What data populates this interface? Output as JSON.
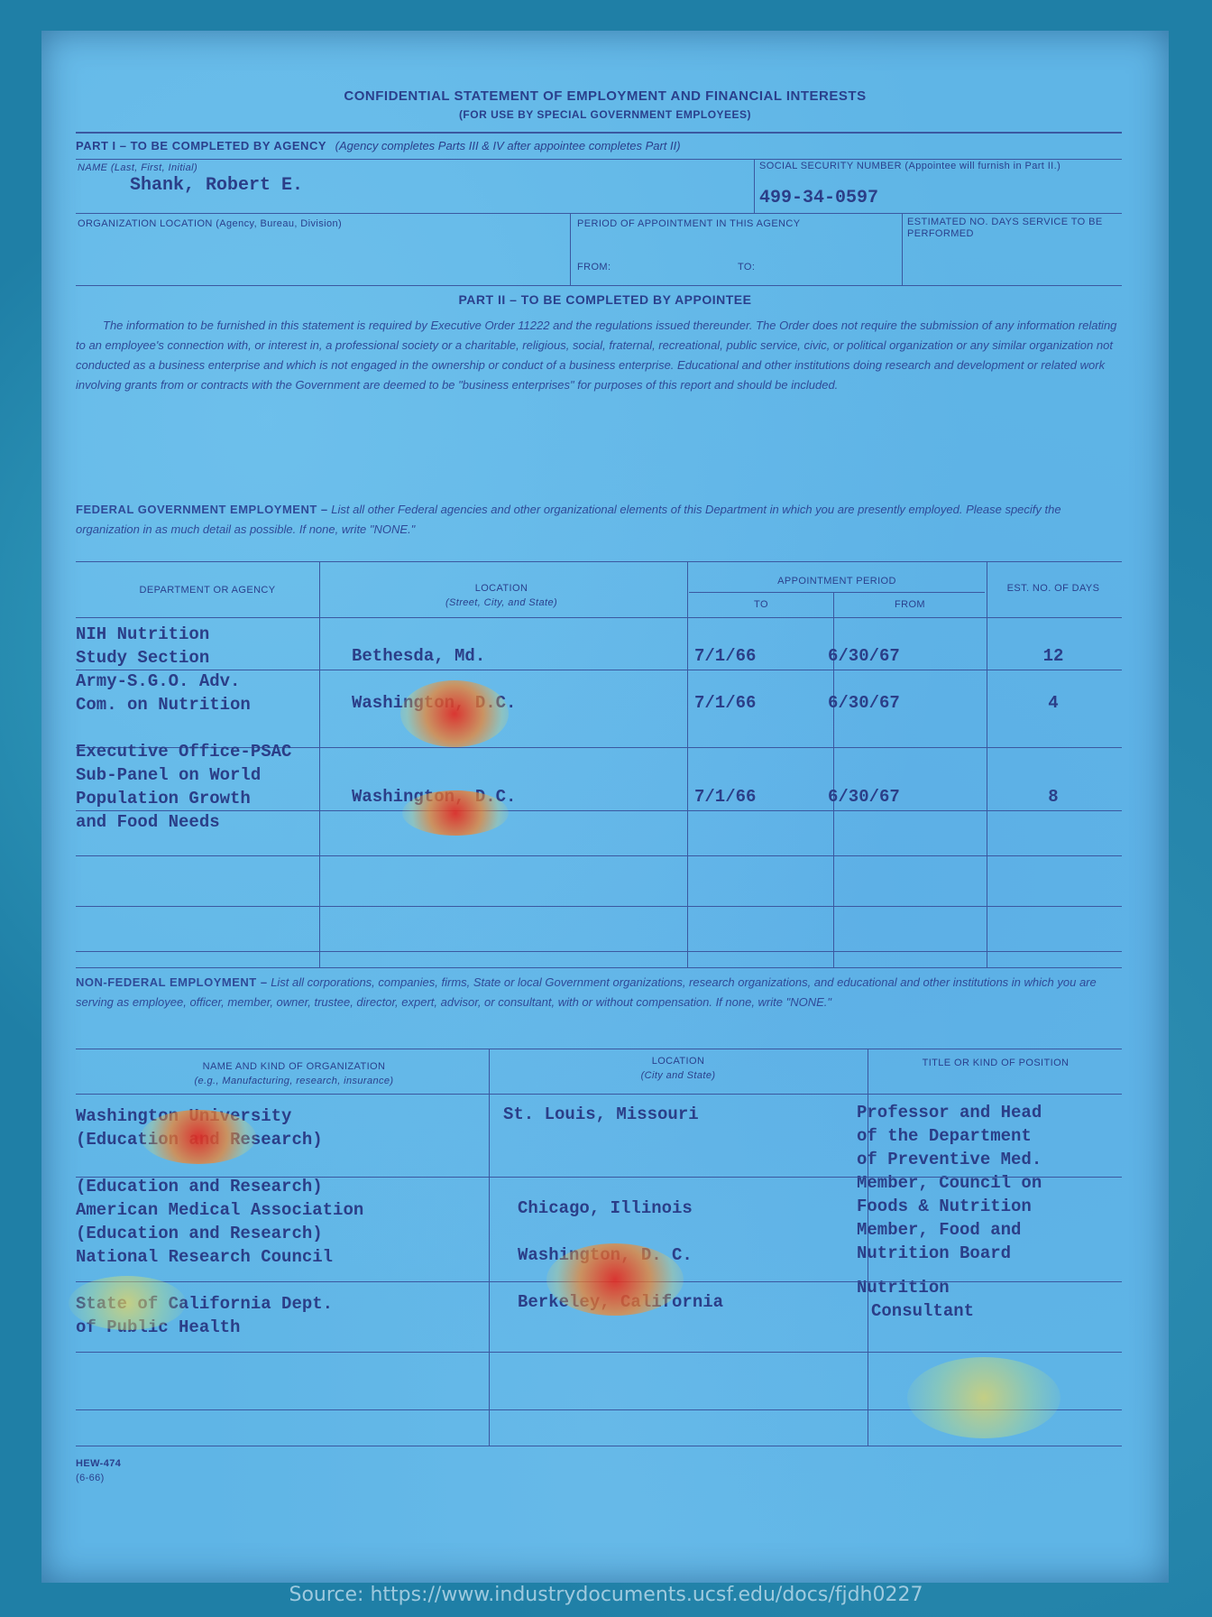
{
  "form": {
    "title": "CONFIDENTIAL STATEMENT OF EMPLOYMENT AND FINANCIAL INTERESTS",
    "subtitle": "(FOR USE BY SPECIAL GOVERNMENT EMPLOYEES)",
    "part1_heading": "PART I – TO BE COMPLETED BY AGENCY",
    "part1_note": "(Agency completes Parts III & IV after appointee completes Part II)",
    "name_label": "NAME (Last, First, Initial)",
    "name_value": "Shank, Robert E.",
    "ssn_label": "SOCIAL SECURITY NUMBER (Appointee will furnish in Part II.)",
    "ssn_value": "499-34-0597",
    "org_label": "ORGANIZATION LOCATION (Agency, Bureau, Division)",
    "period_label": "PERIOD OF APPOINTMENT IN THIS AGENCY",
    "from_label": "FROM:",
    "to_label": "TO:",
    "est_days_label": "ESTIMATED NO. DAYS SERVICE TO BE PERFORMED",
    "part2_heading": "PART II – TO BE COMPLETED BY APPOINTEE",
    "intro_paragraph": "The information to be furnished in this statement is required by Executive Order 11222 and the regulations issued thereunder. The Order does not require the submission of any information relating to an employee's connection with, or interest in, a professional society or a charitable, religious, social, fraternal, recreational, public service, civic, or political organization or any similar organization not conducted as a business enterprise and which is not engaged in the ownership or conduct of a business enterprise. Educational and other institutions doing research and development or related work involving grants from or contracts with the Government are deemed to be \"business enterprises\" for purposes of this report and should be included.",
    "federal_heading": "FEDERAL GOVERNMENT EMPLOYMENT –",
    "federal_instructions": "List all other Federal agencies and other organizational elements of this Department in which you are presently employed. Please specify the organization in as much detail as possible. If none, write \"NONE.\"",
    "nonfederal_heading": "NON-FEDERAL EMPLOYMENT –",
    "nonfederal_instructions": "List all corporations, companies, firms, State or local Government organizations, research organizations, and educational and other institutions in which you are serving as employee, officer, member, owner, trustee, director, expert, advisor, or consultant, with or without compensation. If none, write \"NONE.\"",
    "form_code": "HEW-474",
    "form_date": "(6-66)"
  },
  "federal_table": {
    "headers": {
      "dept": "DEPARTMENT OR AGENCY",
      "location": "LOCATION",
      "location_sub": "(Street, City, and State)",
      "appt_period": "APPOINTMENT PERIOD",
      "to": "TO",
      "from": "FROM",
      "days": "EST. NO. OF DAYS"
    },
    "rows": [
      {
        "dept1": "NIH Nutrition",
        "dept2": "Study Section",
        "dept3": "",
        "dept4": "",
        "location": "Bethesda, Md.",
        "to": "7/1/66",
        "from": "6/30/67",
        "days": "12"
      },
      {
        "dept1": "Army-S.G.O. Adv.",
        "dept2": "Com. on Nutrition",
        "dept3": "",
        "dept4": "",
        "location": "Washington, D.C.",
        "to": "7/1/66",
        "from": "6/30/67",
        "days": "4"
      },
      {
        "dept1": "Executive Office-PSAC",
        "dept2": "Sub-Panel on World",
        "dept3": "Population Growth",
        "dept4": "and Food Needs",
        "location": "Washington, D.C.",
        "to": "7/1/66",
        "from": "6/30/67",
        "days": "8"
      }
    ]
  },
  "nonfederal_table": {
    "headers": {
      "name": "NAME AND KIND OF ORGANIZATION",
      "name_sub": "(e.g., Manufacturing, research, insurance)",
      "location": "LOCATION",
      "location_sub": "(City and State)",
      "title": "TITLE OR KIND OF POSITION"
    },
    "col1_lines": [
      "Washington University",
      "(Education and Research)",
      "(Education and Research)",
      "American Medical Association",
      "(Education and Research)",
      "National Research Council",
      "State of California Dept.",
      "of Public Health"
    ],
    "col2_lines": [
      "St. Louis, Missouri",
      "Chicago, Illinois",
      "Washington, D. C.",
      "Berkeley, California"
    ],
    "col3_lines": [
      "Professor and Head",
      "of the Department",
      "of Preventive Med.",
      "Member, Council on",
      "Foods & Nutrition",
      "Member, Food and",
      "Nutrition Board",
      "Nutrition",
      "Consultant"
    ]
  },
  "source_caption": "Source: https://www.industrydocuments.ucsf.edu/docs/fjdh0227"
}
